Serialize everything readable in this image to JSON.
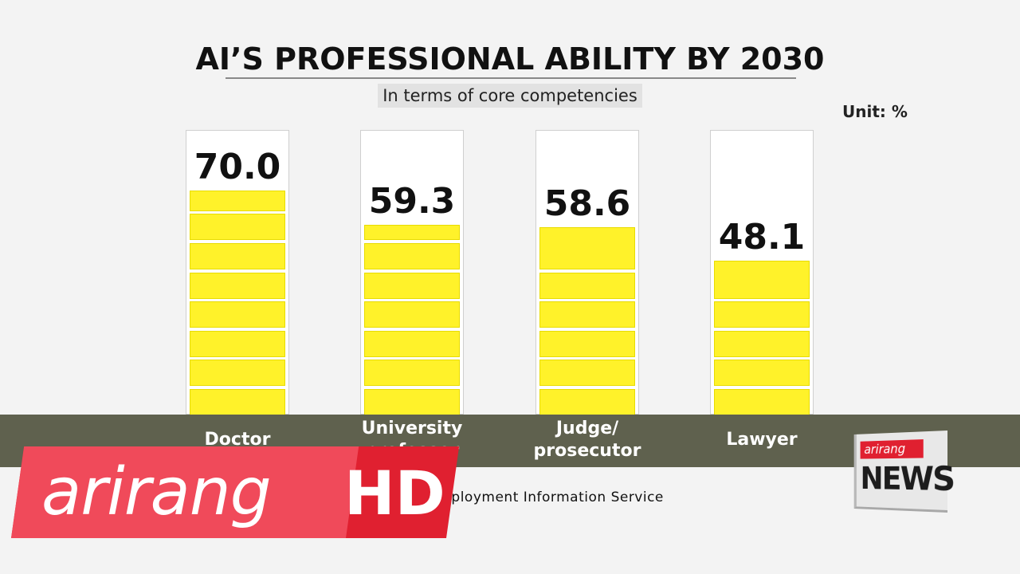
{
  "chart_data": {
    "type": "bar",
    "title": "AI’S PROFESSIONAL ABILITY BY 2030",
    "subtitle": "In terms of core competencies",
    "unit_label": "Unit: %",
    "categories": [
      "Doctor",
      "University professor",
      "Judge/ prosecutor",
      "Lawyer"
    ],
    "category_lines": [
      [
        "Doctor"
      ],
      [
        "University",
        "professor"
      ],
      [
        "Judge/",
        "prosecutor"
      ],
      [
        "Lawyer"
      ]
    ],
    "values": [
      70.0,
      59.3,
      58.6,
      48.1
    ],
    "value_labels": [
      "70.0",
      "59.3",
      "58.6",
      "48.1"
    ],
    "ylim": [
      0,
      100
    ],
    "bar_color": "#fff22a",
    "source": "Source: Korea Employment Information Service"
  },
  "overlay": {
    "logo_text": "arirang",
    "logo_hd": "HD",
    "logo_color": "#e02030",
    "news_brand": "arirang",
    "news_word": "NEWS"
  }
}
